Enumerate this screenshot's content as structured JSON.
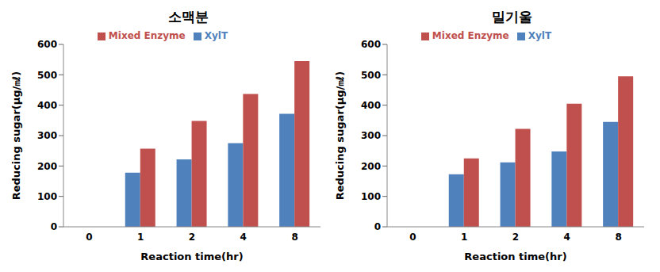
{
  "chart_data": [
    {
      "type": "bar",
      "title": "소맥분",
      "x_label": "Reaction time(hr)",
      "y_label": "Reducing sugar(μg/㎖)",
      "categories": [
        "0",
        "1",
        "2",
        "4",
        "8"
      ],
      "series": [
        {
          "name": "XylT",
          "color": "#4f81bd",
          "values": [
            0,
            178,
            222,
            275,
            372
          ]
        },
        {
          "name": "Mixed Enzyme",
          "color": "#c0504d",
          "values": [
            0,
            257,
            348,
            437,
            545
          ]
        }
      ],
      "ylim": [
        0,
        600
      ],
      "yticks": [
        0,
        100,
        200,
        300,
        400,
        500,
        600
      ],
      "grid": false,
      "legend": "top"
    },
    {
      "type": "bar",
      "title": "밀기울",
      "x_label": "Reaction time(hr)",
      "y_label": "Reducing sugar(μg/㎖)",
      "categories": [
        "0",
        "1",
        "2",
        "4",
        "8"
      ],
      "series": [
        {
          "name": "XylT",
          "color": "#4f81bd",
          "values": [
            0,
            173,
            212,
            248,
            345
          ]
        },
        {
          "name": "Mixed Enzyme",
          "color": "#c0504d",
          "values": [
            0,
            225,
            322,
            405,
            495
          ]
        }
      ],
      "ylim": [
        0,
        600
      ],
      "yticks": [
        0,
        100,
        200,
        300,
        400,
        500,
        600
      ],
      "grid": false,
      "legend": "top"
    }
  ]
}
